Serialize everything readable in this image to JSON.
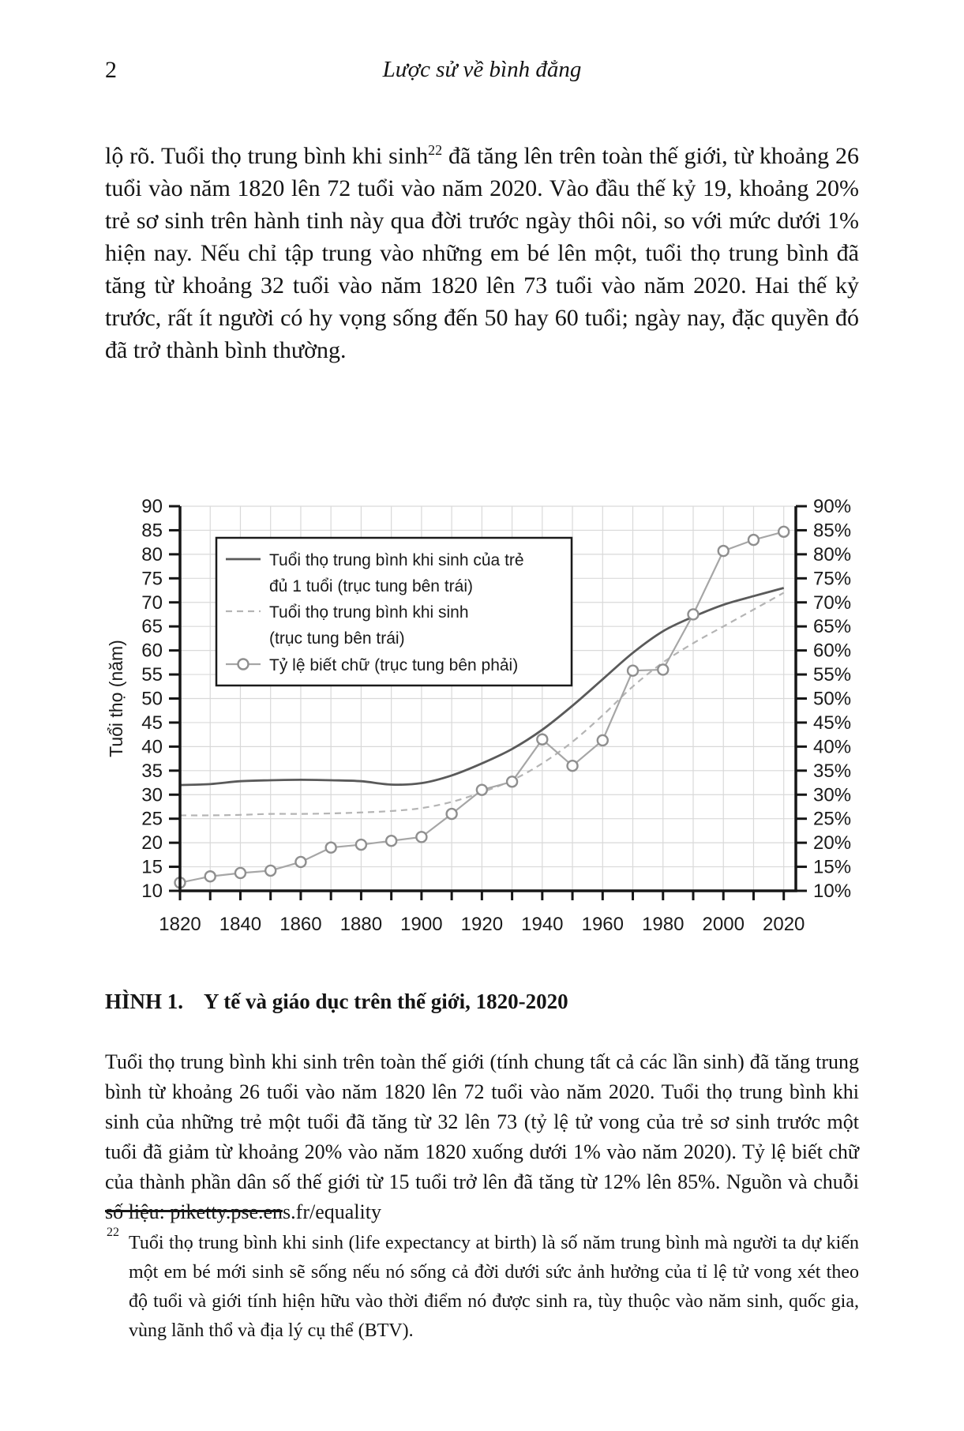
{
  "header": {
    "page_number": "2",
    "running_title": "Lược sử về bình đẳng"
  },
  "paragraph": {
    "before_ref": "lộ rõ. Tuổi thọ trung bình khi sinh",
    "ref": "22",
    "after_ref": " đã tăng lên trên toàn thế giới, từ khoảng 26 tuổi vào năm 1820 lên 72 tuổi vào năm 2020. Vào đầu thế kỷ 19, khoảng 20% trẻ sơ sinh trên hành tinh này qua đời trước ngày thôi nôi, so với mức dưới 1% hiện nay. Nếu chỉ tập trung vào những em bé lên một, tuổi thọ trung bình đã tăng từ khoảng 32 tuổi vào năm 1820 lên 73 tuổi vào năm 2020. Hai thế kỷ trước, rất ít người có hy vọng sống đến 50 hay 60 tuổi; ngày nay, đặc quyền đó đã trở thành bình thường."
  },
  "figure": {
    "label": "HÌNH 1.",
    "title": "Y tế và giáo dục trên thế giới, 1820-2020",
    "caption": "Tuổi thọ trung bình khi sinh trên toàn thế giới (tính chung tất cả các lần sinh) đã tăng trung bình từ khoảng 26 tuổi vào năm 1820 lên 72 tuổi vào năm 2020. Tuổi thọ trung bình khi sinh của những trẻ một tuổi đã tăng từ 32 lên 73 (tỷ lệ tử vong của trẻ sơ sinh trước một tuổi đã giảm từ khoảng 20% vào năm 1820 xuống dưới 1% vào năm 2020). Tỷ lệ biết chữ của thành phần dân số thế giới từ 15 tuổi trở lên đã tăng từ 12% lên 85%. Nguồn và chuỗi số liệu: piketty.pse.ens.fr/equality"
  },
  "footnote": {
    "marker": "22",
    "text": "Tuổi thọ trung bình khi sinh (life expectancy at birth) là số năm trung bình mà người ta dự kiến một em bé mới sinh sẽ sống nếu nó sống cả đời dưới sức ảnh hưởng của tỉ lệ tử vong xét theo độ tuổi và giới tính hiện hữu vào thời điểm nó được sinh ra, tùy thuộc vào năm sinh, quốc gia, vùng lãnh thổ và địa lý cụ thể (BTV)."
  },
  "chart_data": {
    "type": "line",
    "x": [
      1820,
      1830,
      1840,
      1850,
      1860,
      1870,
      1880,
      1890,
      1900,
      1910,
      1920,
      1930,
      1940,
      1950,
      1960,
      1970,
      1980,
      1990,
      2000,
      2010,
      2020
    ],
    "series": [
      {
        "name": "le-age1",
        "legend": [
          "Tuổi thọ trung bình khi sinh của trẻ",
          "đủ 1 tuổi (trục tung bên trái)"
        ],
        "axis": "left",
        "style": "solid",
        "color": "#5a5a5a",
        "values": [
          32,
          32.2,
          32.8,
          33,
          33.1,
          33,
          32.8,
          32.1,
          32.4,
          34,
          36.5,
          39.5,
          43.5,
          48.5,
          54,
          59.5,
          64,
          67,
          69.5,
          71.3,
          73
        ]
      },
      {
        "name": "le-birth",
        "legend": [
          "Tuổi thọ trung bình khi sinh",
          "(trục tung bên trái)"
        ],
        "axis": "left",
        "style": "dashed",
        "color": "#b4b4b4",
        "values": [
          25.7,
          25.7,
          25.8,
          26,
          26,
          26.1,
          26.3,
          26.6,
          27.2,
          28.5,
          30.5,
          33,
          36.5,
          41,
          46.5,
          52.5,
          57.5,
          61.5,
          65,
          68.5,
          72
        ]
      },
      {
        "name": "literacy",
        "legend": [
          "Tỷ lệ biết chữ (trục tung bên phải)"
        ],
        "axis": "right",
        "style": "line-circle",
        "color": "#a6a6a6",
        "marker_stroke": "#8f8f8f",
        "values": [
          11.7,
          13,
          13.7,
          14.2,
          16,
          19,
          19.6,
          20.4,
          21.2,
          26,
          31,
          32.7,
          41.5,
          36,
          41.3,
          55.8,
          56,
          67.5,
          80.7,
          83,
          84.7
        ]
      }
    ],
    "title": "Y tế và giáo dục trên thế giới, 1820-2020",
    "ylabel_left": "Tuổi thọ (năm)",
    "ylim": [
      10,
      90
    ],
    "ytick_step": 5,
    "yticks_right_suffix": "%",
    "xlim": [
      1820,
      2024
    ],
    "xtick_minor_step": 10,
    "xtick_labels": [
      1820,
      1840,
      1860,
      1880,
      1900,
      1920,
      1940,
      1960,
      1980,
      2000,
      2020
    ],
    "grid": true,
    "legend_position": "upper-left-inside",
    "colors": {
      "grid": "#d9d9d9",
      "axis": "#161616",
      "legend_border": "#1a1a1a",
      "text": "#1a1a1a"
    }
  }
}
